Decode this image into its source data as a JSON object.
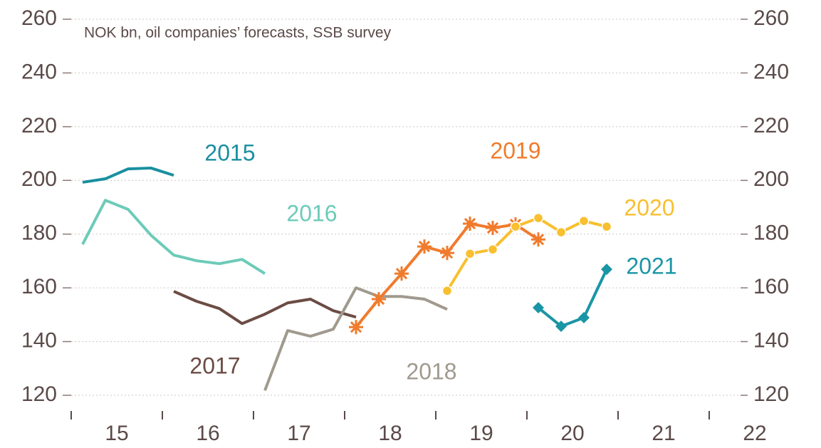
{
  "chart_data": {
    "type": "line",
    "subtitle": "NOK bn, oil companies’ forecasts, SSB survey",
    "xlim": [
      2014.85,
      2022.4
    ],
    "xticks": [
      {
        "value": 2015,
        "label": "15"
      },
      {
        "value": 2016,
        "label": "16"
      },
      {
        "value": 2017,
        "label": "17"
      },
      {
        "value": 2018,
        "label": "18"
      },
      {
        "value": 2019,
        "label": "19"
      },
      {
        "value": 2020,
        "label": "20"
      },
      {
        "value": 2021,
        "label": "21"
      },
      {
        "value": 2022,
        "label": "22"
      }
    ],
    "ylim": [
      120,
      260
    ],
    "yticks": [
      120,
      140,
      160,
      180,
      200,
      220,
      240,
      260
    ],
    "y2lim": [
      120,
      260
    ],
    "y2ticks": [
      120,
      140,
      160,
      180,
      200,
      220,
      240,
      260
    ],
    "grid": true,
    "series": [
      {
        "name": "2015",
        "color": "#1a8fa0",
        "marker": "none",
        "x": [
          2015.125,
          2015.375,
          2015.625,
          2015.875,
          2016.125
        ],
        "values": [
          199.3,
          200.6,
          204.3,
          204.6,
          201.9
        ]
      },
      {
        "name": "2016",
        "color": "#6ccbb8",
        "marker": "none",
        "x": [
          2015.125,
          2015.375,
          2015.625,
          2015.875,
          2016.125,
          2016.375,
          2016.625,
          2016.875,
          2017.125
        ],
        "values": [
          176.2,
          192.6,
          189.2,
          179.6,
          172.2,
          170.1,
          169.0,
          170.6,
          165.3
        ]
      },
      {
        "name": "2017",
        "color": "#6b4c44",
        "marker": "none",
        "x": [
          2016.125,
          2016.375,
          2016.625,
          2016.875,
          2017.125,
          2017.375,
          2017.625,
          2017.875,
          2018.125
        ],
        "values": [
          158.7,
          155.0,
          152.3,
          146.7,
          150.2,
          154.4,
          155.8,
          151.5,
          149.1
        ]
      },
      {
        "name": "2018",
        "color": "#a09a8e",
        "marker": "none",
        "x": [
          2017.125,
          2017.375,
          2017.625,
          2017.875,
          2018.125,
          2018.375,
          2018.625,
          2018.875,
          2019.125
        ],
        "values": [
          121.8,
          144.1,
          142.0,
          144.6,
          160.0,
          156.8,
          156.8,
          155.8,
          152.0
        ]
      },
      {
        "name": "2019",
        "color": "#f07b2c",
        "marker": "asterisk",
        "x": [
          2018.125,
          2018.375,
          2018.625,
          2018.875,
          2019.125,
          2019.375,
          2019.625,
          2019.875,
          2020.125
        ],
        "values": [
          145.4,
          155.8,
          165.3,
          175.4,
          173.0,
          183.9,
          182.3,
          183.6,
          178.0
        ]
      },
      {
        "name": "2020",
        "color": "#f8bf2f",
        "marker": "circle",
        "x": [
          2019.125,
          2019.375,
          2019.625,
          2019.875,
          2020.125,
          2020.375,
          2020.625,
          2020.875
        ],
        "values": [
          158.9,
          172.7,
          174.3,
          182.8,
          186.0,
          180.7,
          184.9,
          182.8
        ]
      },
      {
        "name": "2021",
        "color": "#1a95a5",
        "marker": "diamond",
        "x": [
          2020.125,
          2020.375,
          2020.625,
          2020.875
        ],
        "values": [
          152.6,
          145.7,
          148.9,
          166.9
        ]
      }
    ]
  }
}
